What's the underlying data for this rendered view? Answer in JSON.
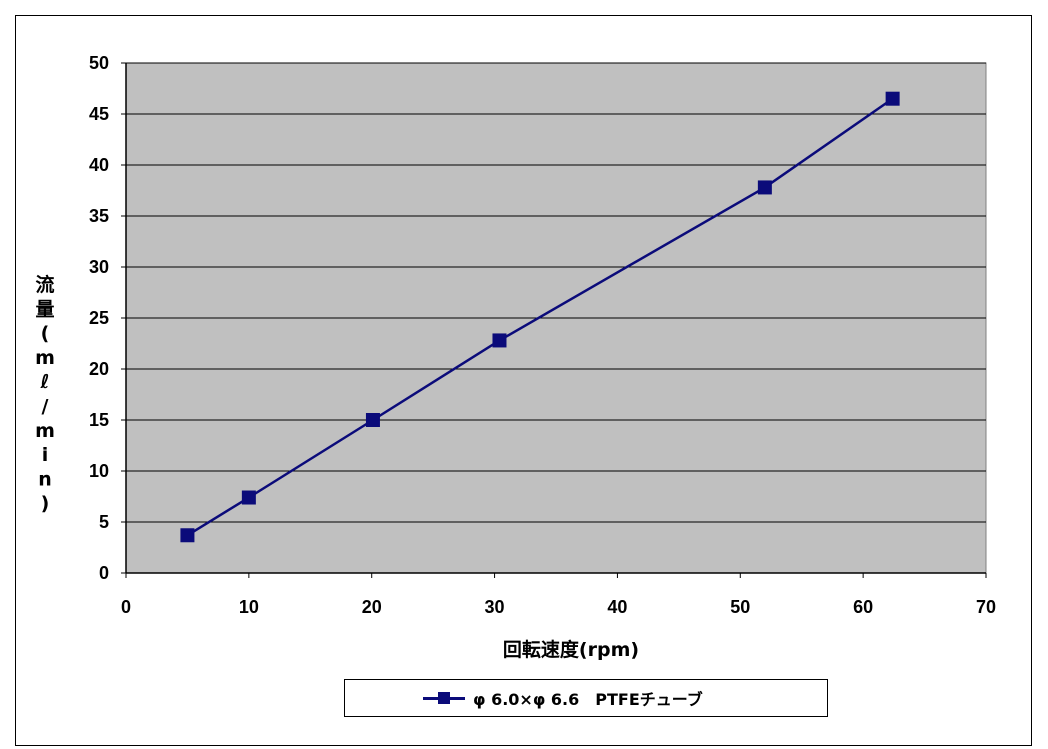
{
  "chart_data": {
    "type": "line",
    "title": "",
    "xlabel": "回転速度(rpm)",
    "ylabel": "流量(mℓ/min)",
    "xlim": [
      0,
      70
    ],
    "ylim": [
      0,
      50
    ],
    "x_ticks": [
      "0",
      "10",
      "20",
      "30",
      "40",
      "50",
      "60",
      "70"
    ],
    "y_ticks": [
      "0",
      "5",
      "10",
      "15",
      "20",
      "25",
      "30",
      "35",
      "40",
      "45",
      "50"
    ],
    "grid": "horizontal",
    "legend_position": "bottom",
    "plot_background": "#c0c0c0",
    "series": [
      {
        "name": "φ 6.0×φ 6.6　PTFEチューブ",
        "color": "#0b0b7a",
        "marker": "square",
        "x": [
          5,
          10,
          20.1,
          30.4,
          52,
          62.4
        ],
        "y": [
          3.7,
          7.4,
          15,
          22.8,
          37.8,
          46.5
        ]
      }
    ]
  }
}
